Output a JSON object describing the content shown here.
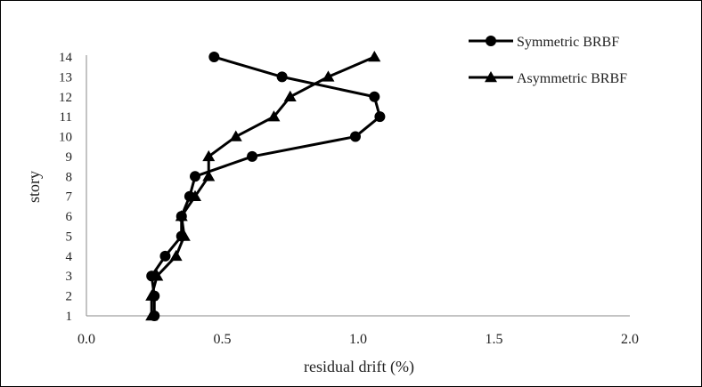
{
  "chart_data": {
    "type": "line",
    "xlabel": "residual drift (%)",
    "ylabel": "story",
    "xlim": [
      0,
      2
    ],
    "ylim": [
      1,
      14
    ],
    "x_ticks": [
      "0.0",
      "0.5",
      "1.0",
      "1.5",
      "2.0"
    ],
    "y_ticks": [
      "1",
      "2",
      "3",
      "4",
      "5",
      "6",
      "7",
      "8",
      "9",
      "10",
      "11",
      "12",
      "13",
      "14"
    ],
    "grid": false,
    "legend_position": "top-right",
    "series": [
      {
        "name": "Symmetric BRBF",
        "marker": "circle",
        "color": "#000000",
        "x": [
          0.25,
          0.25,
          0.24,
          0.29,
          0.35,
          0.35,
          0.38,
          0.4,
          0.61,
          0.99,
          1.08,
          1.06,
          0.72,
          0.47
        ],
        "y": [
          1,
          2,
          3,
          4,
          5,
          6,
          7,
          8,
          9,
          10,
          11,
          12,
          13,
          14
        ]
      },
      {
        "name": "Asymmetric BRBF",
        "marker": "triangle",
        "color": "#000000",
        "x": [
          0.24,
          0.24,
          0.26,
          0.33,
          0.36,
          0.35,
          0.4,
          0.45,
          0.45,
          0.55,
          0.69,
          0.75,
          0.89,
          1.06
        ],
        "y": [
          1,
          2,
          3,
          4,
          5,
          6,
          7,
          8,
          9,
          10,
          11,
          12,
          13,
          14
        ]
      }
    ]
  }
}
